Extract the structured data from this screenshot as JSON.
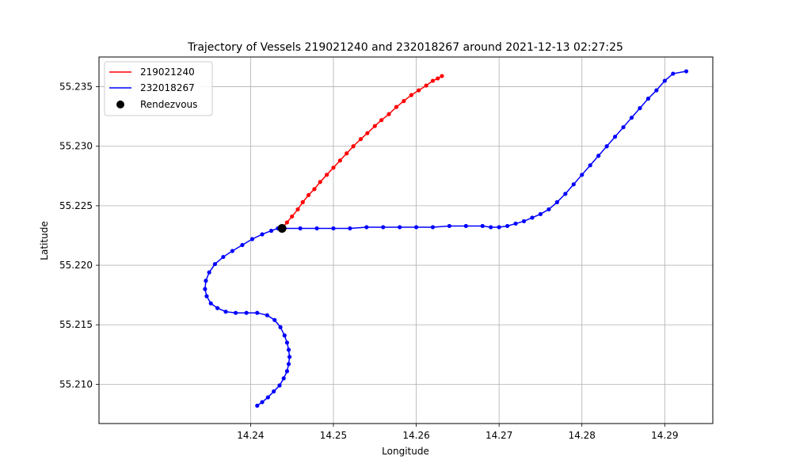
{
  "chart_data": {
    "type": "line",
    "title": "Trajectory of Vessels 219021240 and 232018267 around 2021-12-13 02:27:25",
    "xlabel": "Longitude",
    "ylabel": "Latitude",
    "xlim": [
      14.2217,
      14.2958
    ],
    "ylim": [
      55.2067,
      55.2375
    ],
    "xticks": [
      "14.24",
      "14.25",
      "14.26",
      "14.27",
      "14.28",
      "14.29"
    ],
    "yticks": [
      "55.210",
      "55.215",
      "55.220",
      "55.225",
      "55.230",
      "55.235"
    ],
    "grid": true,
    "legend": {
      "placement": "top-left",
      "entries": [
        "219021240",
        "232018267",
        "Rendezvous"
      ]
    },
    "series": [
      {
        "name": "219021240",
        "color": "#ff0000",
        "points": [
          [
            14.2438,
            55.2231
          ],
          [
            14.2444,
            55.2236
          ],
          [
            14.245,
            55.2241
          ],
          [
            14.2457,
            55.2247
          ],
          [
            14.2463,
            55.2253
          ],
          [
            14.247,
            55.2259
          ],
          [
            14.2477,
            55.2264
          ],
          [
            14.2484,
            55.227
          ],
          [
            14.2492,
            55.2276
          ],
          [
            14.25,
            55.2282
          ],
          [
            14.2508,
            55.2288
          ],
          [
            14.2516,
            55.2294
          ],
          [
            14.2524,
            55.23
          ],
          [
            14.2533,
            55.2306
          ],
          [
            14.2541,
            55.2311
          ],
          [
            14.255,
            55.2317
          ],
          [
            14.2558,
            55.2322
          ],
          [
            14.2567,
            55.2327
          ],
          [
            14.2576,
            55.2333
          ],
          [
            14.2585,
            55.2338
          ],
          [
            14.2594,
            55.2343
          ],
          [
            14.2603,
            55.2347
          ],
          [
            14.2612,
            55.2351
          ],
          [
            14.262,
            55.2355
          ],
          [
            14.2626,
            55.2357
          ],
          [
            14.2631,
            55.2359
          ]
        ]
      },
      {
        "name": "232018267",
        "color": "#0000ff",
        "points": [
          [
            14.2408,
            55.2082
          ],
          [
            14.2414,
            55.2085
          ],
          [
            14.2421,
            55.2089
          ],
          [
            14.2428,
            55.2094
          ],
          [
            14.2435,
            55.2099
          ],
          [
            14.244,
            55.2105
          ],
          [
            14.2444,
            55.2111
          ],
          [
            14.2446,
            55.2117
          ],
          [
            14.2447,
            55.2123
          ],
          [
            14.2446,
            55.2129
          ],
          [
            14.2444,
            55.2135
          ],
          [
            14.2441,
            55.2141
          ],
          [
            14.2436,
            55.2148
          ],
          [
            14.2429,
            55.2154
          ],
          [
            14.242,
            55.2158
          ],
          [
            14.2408,
            55.216
          ],
          [
            14.2395,
            55.216
          ],
          [
            14.2382,
            55.216
          ],
          [
            14.237,
            55.2161
          ],
          [
            14.236,
            55.2164
          ],
          [
            14.2352,
            55.2168
          ],
          [
            14.2347,
            55.2174
          ],
          [
            14.2345,
            55.218
          ],
          [
            14.2346,
            55.2187
          ],
          [
            14.235,
            55.2194
          ],
          [
            14.2357,
            55.2201
          ],
          [
            14.2367,
            55.2207
          ],
          [
            14.2378,
            55.2212
          ],
          [
            14.239,
            55.2217
          ],
          [
            14.2402,
            55.2222
          ],
          [
            14.2414,
            55.2226
          ],
          [
            14.2425,
            55.2229
          ],
          [
            14.2433,
            55.2231
          ],
          [
            14.244,
            55.2231
          ],
          [
            14.246,
            55.2231
          ],
          [
            14.248,
            55.2231
          ],
          [
            14.25,
            55.2231
          ],
          [
            14.252,
            55.2231
          ],
          [
            14.254,
            55.2232
          ],
          [
            14.256,
            55.2232
          ],
          [
            14.258,
            55.2232
          ],
          [
            14.26,
            55.2232
          ],
          [
            14.262,
            55.2232
          ],
          [
            14.264,
            55.2233
          ],
          [
            14.266,
            55.2233
          ],
          [
            14.268,
            55.2233
          ],
          [
            14.269,
            55.2232
          ],
          [
            14.27,
            55.2232
          ],
          [
            14.271,
            55.2233
          ],
          [
            14.272,
            55.2235
          ],
          [
            14.273,
            55.2237
          ],
          [
            14.274,
            55.224
          ],
          [
            14.275,
            55.2243
          ],
          [
            14.276,
            55.2247
          ],
          [
            14.277,
            55.2253
          ],
          [
            14.278,
            55.226
          ],
          [
            14.279,
            55.2268
          ],
          [
            14.28,
            55.2276
          ],
          [
            14.281,
            55.2284
          ],
          [
            14.282,
            55.2292
          ],
          [
            14.283,
            55.23
          ],
          [
            14.284,
            55.2308
          ],
          [
            14.285,
            55.2316
          ],
          [
            14.286,
            55.2324
          ],
          [
            14.287,
            55.2332
          ],
          [
            14.288,
            55.234
          ],
          [
            14.289,
            55.2347
          ],
          [
            14.29,
            55.2355
          ],
          [
            14.291,
            55.2361
          ],
          [
            14.2926,
            55.2363
          ]
        ]
      }
    ],
    "rendezvous": {
      "name": "Rendezvous",
      "color": "#000000",
      "point": [
        14.2438,
        55.2231
      ]
    }
  }
}
